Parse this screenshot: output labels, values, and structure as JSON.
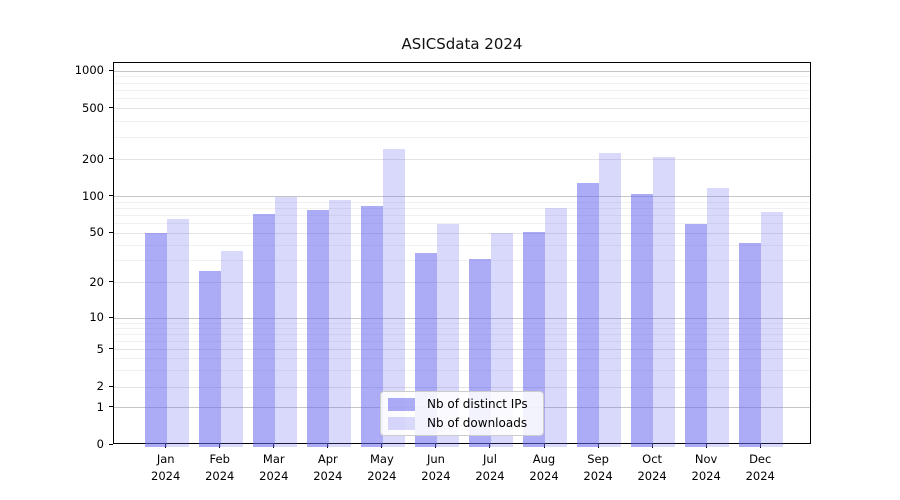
{
  "chart_data": {
    "type": "bar",
    "title": "ASICSdata 2024",
    "x_months": [
      "Jan",
      "Feb",
      "Mar",
      "Apr",
      "May",
      "Jun",
      "Jul",
      "Aug",
      "Sep",
      "Oct",
      "Nov",
      "Dec"
    ],
    "x_year": "2024",
    "series": [
      {
        "name": "Nb of distinct IPs",
        "color": "rgba(102,102,238,0.55)",
        "values": [
          50,
          25,
          72,
          77,
          83,
          35,
          31,
          51,
          130,
          105,
          60,
          42
        ]
      },
      {
        "name": "Nb of downloads",
        "color": "rgba(102,102,238,0.25)",
        "values": [
          66,
          36,
          100,
          93,
          245,
          60,
          50,
          80,
          225,
          210,
          118,
          75
        ]
      }
    ],
    "y_axis": {
      "ticks": [
        0,
        1,
        2,
        5,
        10,
        20,
        50,
        100,
        200,
        500,
        1000
      ],
      "scale": "symlog",
      "ylim": [
        0,
        1200
      ],
      "anchors": [
        [
          0,
          1.0
        ],
        [
          1,
          0.9031
        ],
        [
          2,
          0.8491
        ],
        [
          5,
          0.7504
        ],
        [
          10,
          0.6684
        ],
        [
          20,
          0.5757
        ],
        [
          50,
          0.4458
        ],
        [
          100,
          0.3497
        ],
        [
          200,
          0.2535
        ],
        [
          500,
          0.12
        ],
        [
          1000,
          0.0215
        ]
      ],
      "minor_ticks": [
        3,
        4,
        6,
        7,
        8,
        9,
        30,
        40,
        60,
        70,
        80,
        90,
        300,
        400,
        600,
        700,
        800,
        900
      ],
      "decade_ticks": [
        1,
        10,
        100,
        1000
      ]
    },
    "grid": true,
    "legend_position": "lower center"
  },
  "colors": {
    "grid_decade": "#c6c6c6",
    "grid_major": "#e3e3e3",
    "grid_minor": "#f0f0f0",
    "spine": "#000000",
    "text": "#000000"
  }
}
